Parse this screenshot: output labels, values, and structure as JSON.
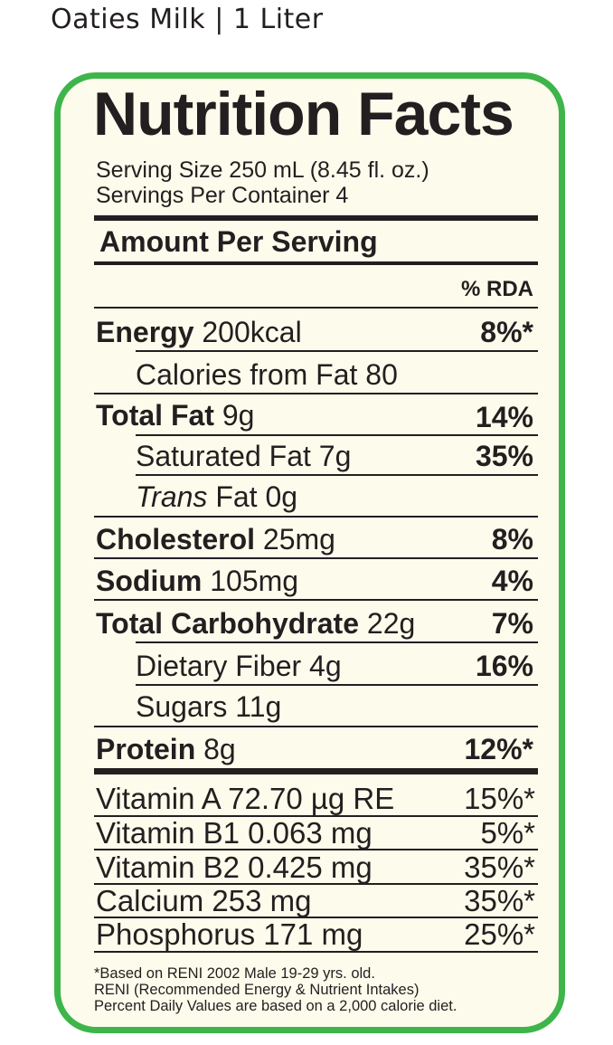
{
  "product": {
    "name": "Oaties Milk",
    "separator": "|",
    "size": "1 Liter"
  },
  "label": {
    "title": "Nutrition Facts",
    "serving_size": "Serving Size 250 mL (8.45 fl. oz.)",
    "servings_per_container": "Servings Per Container 4",
    "amount_per_serving": "Amount Per Serving",
    "rda_header": "% RDA",
    "rows": [
      {
        "name": "Energy",
        "amount": "200kcal",
        "pct": "8%*"
      },
      {
        "name": "Calories from Fat",
        "amount": "80"
      },
      {
        "name": "Total Fat",
        "amount": "9g",
        "pct": "14%"
      },
      {
        "name": "Saturated Fat",
        "amount": "7g",
        "pct": "35%"
      },
      {
        "name": "Trans",
        "amount": "Fat 0g"
      },
      {
        "name": "Cholesterol",
        "amount": "25mg",
        "pct": "8%"
      },
      {
        "name": "Sodium",
        "amount": "105mg",
        "pct": "4%"
      },
      {
        "name": "Total Carbohydrate",
        "amount": "22g",
        "pct": "7%"
      },
      {
        "name": "Dietary Fiber",
        "amount": "4g",
        "pct": "16%"
      },
      {
        "name": "Sugars",
        "amount": "11g"
      },
      {
        "name": "Protein",
        "amount": "8g",
        "pct": "12%*"
      }
    ],
    "vitamins": [
      {
        "label": "Vitamin A 72.70 µg RE",
        "pct": "15%*"
      },
      {
        "label": "Vitamin B1 0.063 mg",
        "pct": "5%*"
      },
      {
        "label": "Vitamin B2 0.425 mg",
        "pct": "35%*"
      },
      {
        "label": "Calcium 253 mg",
        "pct": "35%*"
      },
      {
        "label": "Phosphorus 171 mg",
        "pct": "25%*"
      }
    ],
    "footnotes": [
      "*Based on RENI 2002 Male 19-29 yrs. old.",
      "RENI (Recommended Energy & Nutrient Intakes)",
      "Percent Daily Values are based on a 2,000 calorie diet."
    ]
  },
  "colors": {
    "border": "#3db54a",
    "panel": "#fdfbec",
    "text": "#231f20"
  }
}
